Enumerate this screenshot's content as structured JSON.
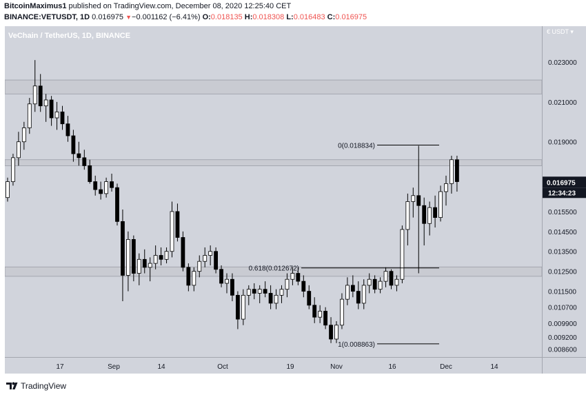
{
  "header": {
    "author": "BitcoinMaximus1",
    "published_text": "published on TradingView.com, December 08, 2020 12:25:40 CET",
    "symbol": "BINANCE:VETUSDT, 1D",
    "last": "0.016975",
    "change_arrow": "▼",
    "change": "−0.001162 (−6.41%)",
    "o_label": "O:",
    "o_value": "0.018135",
    "h_label": "H:",
    "h_value": "0.018308",
    "l_label": "L:",
    "l_value": "0.016483",
    "c_label": "C:",
    "c_value": "0.016975"
  },
  "chart_title": "VeChain / TetherUS, 1D, BINANCE",
  "currency_label": "€ USDT ▾",
  "current_price_label": "0.016975",
  "countdown_label": "12:34:23",
  "footer": {
    "brand": "TradingView",
    "logo_icon": "tradingview-logo-icon"
  },
  "colors": {
    "up": "#ffffff",
    "down": "#000000",
    "zone": "#c5c8cf",
    "zone_border": "#9a9da6",
    "background": "#d1d4dc"
  },
  "chart_data": {
    "type": "candlestick",
    "price_axis_labels": [
      "0.023000",
      "0.021000",
      "0.019000",
      "0.017000",
      "0.015500",
      "0.014500",
      "0.013500",
      "0.012500",
      "0.011500",
      "0.010700",
      "0.009900",
      "0.009200",
      "0.008600"
    ],
    "time_axis_labels": [
      "17",
      "Sep",
      "14",
      "Oct",
      "19",
      "Nov",
      "16",
      "Dec",
      "14"
    ],
    "ylim": [
      0.0082,
      0.0248
    ],
    "fib_levels": [
      {
        "label": "0(0.018834)",
        "value": 0.018834
      },
      {
        "label": "0.618(0.012672)",
        "value": 0.012672
      },
      {
        "label": "1(0.008863)",
        "value": 0.008863
      }
    ],
    "zones": [
      {
        "low": 0.0214,
        "high": 0.0221
      },
      {
        "low": 0.0178,
        "high": 0.0181
      },
      {
        "low": 0.01225,
        "high": 0.01272
      }
    ],
    "ohlc": [
      [
        0.0162,
        0.0172,
        0.016,
        0.017
      ],
      [
        0.017,
        0.0184,
        0.0168,
        0.0182
      ],
      [
        0.0182,
        0.0195,
        0.0178,
        0.019
      ],
      [
        0.019,
        0.02,
        0.0186,
        0.0197
      ],
      [
        0.0197,
        0.0212,
        0.0194,
        0.0209
      ],
      [
        0.0209,
        0.0231,
        0.0205,
        0.0218
      ],
      [
        0.0218,
        0.0224,
        0.0205,
        0.0208
      ],
      [
        0.0208,
        0.0214,
        0.02,
        0.0211
      ],
      [
        0.0211,
        0.0213,
        0.0198,
        0.0202
      ],
      [
        0.0202,
        0.021,
        0.0196,
        0.0205
      ],
      [
        0.0205,
        0.0208,
        0.0196,
        0.0199
      ],
      [
        0.0199,
        0.0203,
        0.019,
        0.0193
      ],
      [
        0.0193,
        0.0196,
        0.018,
        0.0184
      ],
      [
        0.0184,
        0.019,
        0.0178,
        0.0182
      ],
      [
        0.0182,
        0.0186,
        0.0176,
        0.0178
      ],
      [
        0.0178,
        0.0181,
        0.0169,
        0.017
      ],
      [
        0.017,
        0.0173,
        0.0163,
        0.0166
      ],
      [
        0.0166,
        0.017,
        0.0161,
        0.0164
      ],
      [
        0.0164,
        0.0172,
        0.0162,
        0.017
      ],
      [
        0.017,
        0.0174,
        0.0165,
        0.0167
      ],
      [
        0.0167,
        0.0169,
        0.0148,
        0.015
      ],
      [
        0.015,
        0.0156,
        0.011,
        0.0123
      ],
      [
        0.0123,
        0.0145,
        0.0115,
        0.0141
      ],
      [
        0.0141,
        0.0143,
        0.012,
        0.0124
      ],
      [
        0.0124,
        0.0134,
        0.0118,
        0.0131
      ],
      [
        0.0131,
        0.0136,
        0.0124,
        0.0127
      ],
      [
        0.0127,
        0.0132,
        0.012,
        0.0129
      ],
      [
        0.0129,
        0.0138,
        0.0126,
        0.0133
      ],
      [
        0.0133,
        0.0137,
        0.0128,
        0.0131
      ],
      [
        0.0131,
        0.0137,
        0.0129,
        0.0135
      ],
      [
        0.0135,
        0.016,
        0.0132,
        0.0155
      ],
      [
        0.0155,
        0.0159,
        0.014,
        0.0142
      ],
      [
        0.0142,
        0.0145,
        0.0125,
        0.0127
      ],
      [
        0.0127,
        0.0129,
        0.0115,
        0.0118
      ],
      [
        0.0118,
        0.0127,
        0.0115,
        0.0125
      ],
      [
        0.0125,
        0.0133,
        0.0122,
        0.013
      ],
      [
        0.013,
        0.0137,
        0.0127,
        0.0133
      ],
      [
        0.0133,
        0.0138,
        0.0128,
        0.0135
      ],
      [
        0.0135,
        0.0137,
        0.0124,
        0.0126
      ],
      [
        0.0126,
        0.0128,
        0.0117,
        0.0119
      ],
      [
        0.0119,
        0.0124,
        0.0114,
        0.0121
      ],
      [
        0.0121,
        0.0124,
        0.011,
        0.0113
      ],
      [
        0.0113,
        0.0115,
        0.0096,
        0.0101
      ],
      [
        0.0101,
        0.0116,
        0.0098,
        0.0113
      ],
      [
        0.0113,
        0.0118,
        0.0108,
        0.0116
      ],
      [
        0.0116,
        0.0119,
        0.0111,
        0.0114
      ],
      [
        0.0114,
        0.0118,
        0.0109,
        0.0116
      ],
      [
        0.0116,
        0.012,
        0.0112,
        0.0114
      ],
      [
        0.0114,
        0.0118,
        0.0106,
        0.0109
      ],
      [
        0.0109,
        0.0116,
        0.0106,
        0.0113
      ],
      [
        0.0113,
        0.0118,
        0.0109,
        0.0116
      ],
      [
        0.0116,
        0.0124,
        0.0112,
        0.0121
      ],
      [
        0.0121,
        0.0127,
        0.0118,
        0.0124
      ],
      [
        0.0124,
        0.0127,
        0.0118,
        0.012
      ],
      [
        0.012,
        0.0123,
        0.0112,
        0.0115
      ],
      [
        0.0115,
        0.0118,
        0.0106,
        0.0108
      ],
      [
        0.0108,
        0.0112,
        0.0099,
        0.0102
      ],
      [
        0.0102,
        0.0108,
        0.0099,
        0.0105
      ],
      [
        0.0105,
        0.0107,
        0.0096,
        0.0098
      ],
      [
        0.0098,
        0.0102,
        0.0089,
        0.0091
      ],
      [
        0.0091,
        0.01,
        0.0089,
        0.0098
      ],
      [
        0.0098,
        0.0114,
        0.0096,
        0.0111
      ],
      [
        0.0111,
        0.0122,
        0.0108,
        0.0118
      ],
      [
        0.0118,
        0.0123,
        0.0112,
        0.0115
      ],
      [
        0.0115,
        0.012,
        0.0106,
        0.0109
      ],
      [
        0.0109,
        0.0121,
        0.0106,
        0.0118
      ],
      [
        0.0118,
        0.0124,
        0.0114,
        0.0121
      ],
      [
        0.0121,
        0.0123,
        0.0114,
        0.0116
      ],
      [
        0.0116,
        0.0122,
        0.0114,
        0.012
      ],
      [
        0.012,
        0.0127,
        0.0117,
        0.0125
      ],
      [
        0.0125,
        0.0126,
        0.0116,
        0.0118
      ],
      [
        0.0118,
        0.0123,
        0.0115,
        0.0121
      ],
      [
        0.0121,
        0.0148,
        0.0119,
        0.0146
      ],
      [
        0.0146,
        0.0164,
        0.0138,
        0.016
      ],
      [
        0.016,
        0.0167,
        0.0152,
        0.0163
      ],
      [
        0.0163,
        0.0188,
        0.0124,
        0.0158
      ],
      [
        0.0158,
        0.0162,
        0.0138,
        0.0149
      ],
      [
        0.0149,
        0.016,
        0.0143,
        0.0157
      ],
      [
        0.0157,
        0.0163,
        0.0147,
        0.0152
      ],
      [
        0.0152,
        0.0168,
        0.015,
        0.0165
      ],
      [
        0.0165,
        0.0173,
        0.0158,
        0.0169
      ],
      [
        0.0169,
        0.0183,
        0.0164,
        0.0181
      ],
      [
        0.0181,
        0.0183,
        0.0165,
        0.017
      ]
    ]
  }
}
